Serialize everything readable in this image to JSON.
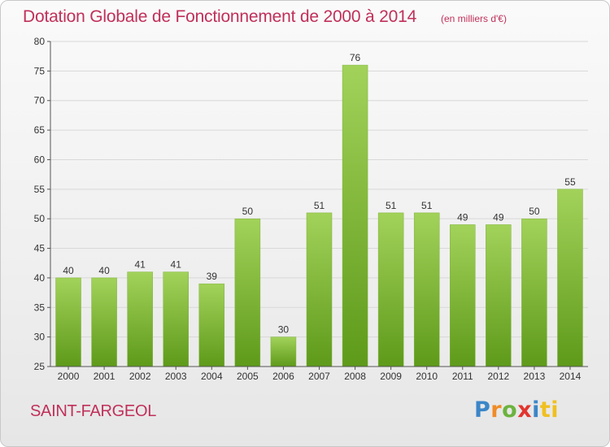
{
  "header": {
    "title": "Dotation Globale de Fonctionnement de 2000 à 2014",
    "subtitle": "(en milliers d'€)"
  },
  "footer": {
    "commune": "SAINT-FARGEOL",
    "logo_parts": [
      "P",
      "r",
      "o",
      "x",
      "i",
      "ti"
    ]
  },
  "colors": {
    "title": "#c0305a",
    "bar_top": "#a2d25a",
    "bar_bottom": "#5e9a1a",
    "grid": "#d8d8d8"
  },
  "chart_data": {
    "type": "bar",
    "title": "Dotation Globale de Fonctionnement de 2000 à 2014",
    "subtitle": "(en milliers d'€)",
    "xlabel": "",
    "ylabel": "",
    "categories": [
      "2000",
      "2001",
      "2002",
      "2003",
      "2004",
      "2005",
      "2006",
      "2007",
      "2008",
      "2009",
      "2010",
      "2011",
      "2012",
      "2013",
      "2014"
    ],
    "values": [
      40,
      40,
      41,
      41,
      39,
      50,
      30,
      51,
      76,
      51,
      51,
      49,
      49,
      50,
      55
    ],
    "ylim": [
      25,
      80
    ],
    "yticks": [
      25,
      30,
      35,
      40,
      45,
      50,
      55,
      60,
      65,
      70,
      75,
      80
    ],
    "grid": true,
    "data_labels": true,
    "legend": "none"
  }
}
